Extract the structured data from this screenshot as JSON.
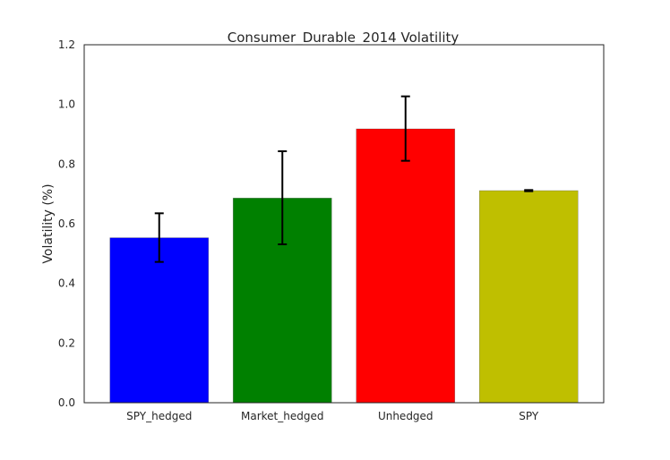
{
  "chart_data": {
    "type": "bar",
    "title": "Consumer_Durable_2014 Volatility",
    "xlabel": "",
    "ylabel": "Volatility (%)",
    "ylim": [
      0.0,
      1.2
    ],
    "yticks": [
      "0.0",
      "0.2",
      "0.4",
      "0.6",
      "0.8",
      "1.0",
      "1.2"
    ],
    "grid": false,
    "categories": [
      "SPY_hedged",
      "Market_hedged",
      "Unhedged",
      "SPY"
    ],
    "values": [
      0.553,
      0.686,
      0.918,
      0.711
    ],
    "error_low": [
      0.472,
      0.531,
      0.811,
      0.709
    ],
    "error_high": [
      0.635,
      0.843,
      1.027,
      0.713
    ],
    "colors": [
      "#0000ff",
      "#008000",
      "#ff0000",
      "#bfbf00"
    ]
  }
}
